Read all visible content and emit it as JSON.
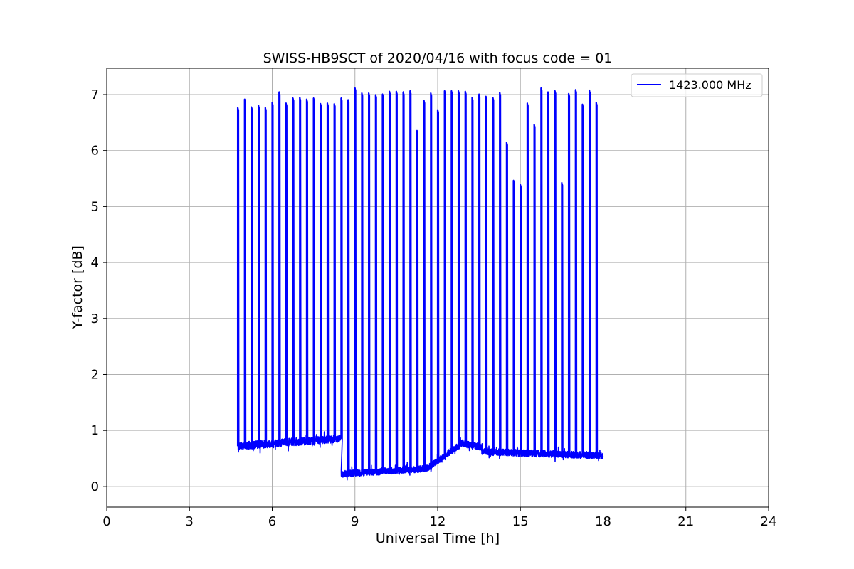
{
  "chart_data": {
    "type": "line",
    "title": "SWISS-HB9SCT of 2020/04/16 with focus code = 01",
    "xlabel": "Universal Time [h]",
    "ylabel": "Y-factor [dB]",
    "xlim": [
      0,
      24
    ],
    "ylim": [
      -0.37,
      7.47
    ],
    "xticks": [
      0,
      3,
      6,
      9,
      12,
      15,
      18,
      21,
      24
    ],
    "yticks": [
      0,
      1,
      2,
      3,
      4,
      5,
      6,
      7
    ],
    "grid": true,
    "legend": {
      "position": "top-right"
    },
    "series": [
      {
        "name": "1423.000 MHz",
        "color": "#0000ff",
        "time_range": [
          4.75,
          18.0
        ],
        "baseline_segments": [
          {
            "x": [
              4.75,
              8.5
            ],
            "y_start": 0.72,
            "y_end": 0.86,
            "noise": 0.07
          },
          {
            "x": [
              8.5,
              11.6
            ],
            "y_start": 0.22,
            "y_end": 0.32,
            "noise": 0.06
          },
          {
            "x": [
              11.6,
              12.8
            ],
            "y_start": 0.32,
            "y_end": 0.74,
            "noise": 0.06
          },
          {
            "x": [
              12.8,
              13.6
            ],
            "y_start": 0.78,
            "y_end": 0.7,
            "noise": 0.06
          },
          {
            "x": [
              13.6,
              18.0
            ],
            "y_start": 0.62,
            "y_end": 0.55,
            "noise": 0.06
          }
        ],
        "spikes": [
          {
            "x": 4.75,
            "y": 6.77
          },
          {
            "x": 5.0,
            "y": 6.92
          },
          {
            "x": 5.25,
            "y": 6.78
          },
          {
            "x": 5.5,
            "y": 6.81
          },
          {
            "x": 5.75,
            "y": 6.77
          },
          {
            "x": 6.0,
            "y": 6.86
          },
          {
            "x": 6.25,
            "y": 7.05
          },
          {
            "x": 6.5,
            "y": 6.85
          },
          {
            "x": 6.75,
            "y": 6.94
          },
          {
            "x": 7.0,
            "y": 6.95
          },
          {
            "x": 7.25,
            "y": 6.92
          },
          {
            "x": 7.5,
            "y": 6.94
          },
          {
            "x": 7.75,
            "y": 6.84
          },
          {
            "x": 8.0,
            "y": 6.85
          },
          {
            "x": 8.25,
            "y": 6.84
          },
          {
            "x": 8.5,
            "y": 6.94
          },
          {
            "x": 8.75,
            "y": 6.91
          },
          {
            "x": 9.0,
            "y": 7.12
          },
          {
            "x": 9.25,
            "y": 7.03
          },
          {
            "x": 9.5,
            "y": 7.03
          },
          {
            "x": 9.75,
            "y": 7.0
          },
          {
            "x": 10.0,
            "y": 7.01
          },
          {
            "x": 10.25,
            "y": 7.06
          },
          {
            "x": 10.5,
            "y": 7.06
          },
          {
            "x": 10.75,
            "y": 7.05
          },
          {
            "x": 11.0,
            "y": 7.07
          },
          {
            "x": 11.25,
            "y": 6.36
          },
          {
            "x": 11.5,
            "y": 6.9
          },
          {
            "x": 11.75,
            "y": 7.03
          },
          {
            "x": 12.0,
            "y": 6.73
          },
          {
            "x": 12.25,
            "y": 7.07
          },
          {
            "x": 12.5,
            "y": 7.07
          },
          {
            "x": 12.75,
            "y": 7.07
          },
          {
            "x": 13.0,
            "y": 7.06
          },
          {
            "x": 13.25,
            "y": 6.95
          },
          {
            "x": 13.5,
            "y": 7.01
          },
          {
            "x": 13.75,
            "y": 6.97
          },
          {
            "x": 14.0,
            "y": 6.95
          },
          {
            "x": 14.25,
            "y": 7.04
          },
          {
            "x": 14.5,
            "y": 6.15
          },
          {
            "x": 14.75,
            "y": 5.47
          },
          {
            "x": 15.0,
            "y": 5.39
          },
          {
            "x": 15.25,
            "y": 6.85
          },
          {
            "x": 15.5,
            "y": 6.47
          },
          {
            "x": 15.75,
            "y": 7.12
          },
          {
            "x": 16.0,
            "y": 7.05
          },
          {
            "x": 16.25,
            "y": 7.07
          },
          {
            "x": 16.5,
            "y": 5.43
          },
          {
            "x": 16.75,
            "y": 7.02
          },
          {
            "x": 17.0,
            "y": 7.09
          },
          {
            "x": 17.25,
            "y": 6.83
          },
          {
            "x": 17.5,
            "y": 7.08
          },
          {
            "x": 17.75,
            "y": 6.86
          }
        ]
      }
    ]
  }
}
